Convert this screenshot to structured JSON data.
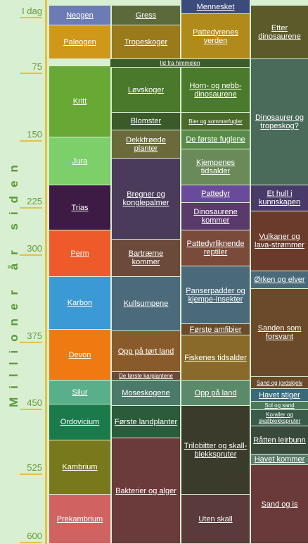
{
  "axis": {
    "title": "Millioner år siden",
    "labels": [
      "I dag",
      "75",
      "150",
      "225",
      "300",
      "375",
      "450",
      "525",
      "600"
    ]
  },
  "columns": [
    {
      "blocks": [
        "Neogen",
        "Paleogen",
        "Kritt",
        "Jura",
        "Trias",
        "Perm",
        "Karbon",
        "Devon",
        "Silur",
        "Ordovicium",
        "Kambrium",
        "Prekambrium"
      ]
    },
    {
      "blocks": [
        "Gress",
        "Tropeskoger",
        "Ild fra himmelen",
        "Løvskoger",
        "Blomster",
        "Dekkfrøede planter",
        "Bregner og konglepalmer",
        "Bartrærne kommer",
        "Kullsumpene",
        "Opp på tørt land",
        "De første karplantene",
        "Moseskogene",
        "Første landplanter",
        "Bakterier og alger"
      ]
    },
    {
      "blocks": [
        "Mennesket",
        "Pattedyrenes verden",
        "Horn- og nebb-dinosaurene",
        "Bier og sommerfugler",
        "De første fuglene",
        "Kjempenes tidsalder",
        "Pattedyr",
        "Dinosaurene kommer",
        "Pattedyrliknende reptiler",
        "Panserpadder og kjempe-insekter",
        "Første amfibier",
        "Fiskenes tidsalder",
        "Opp på land",
        "Trilobitter og skall-blekkspruter",
        "Uten skall"
      ]
    },
    {
      "blocks": [
        "Etter dinosaurene",
        "Dinosaurer og tropeskog?",
        "Et hull i kunnskapen",
        "Vulkaner og lava-strømmer",
        "Ørken og elver",
        "Sanden som forsvant",
        "Sand og jordskjelv",
        "Havet stiger",
        "Sol og sand",
        "Koraller og skallblekkspruter",
        "Råtten leirbunn",
        "Havet kommer",
        "Sand og is"
      ]
    }
  ]
}
